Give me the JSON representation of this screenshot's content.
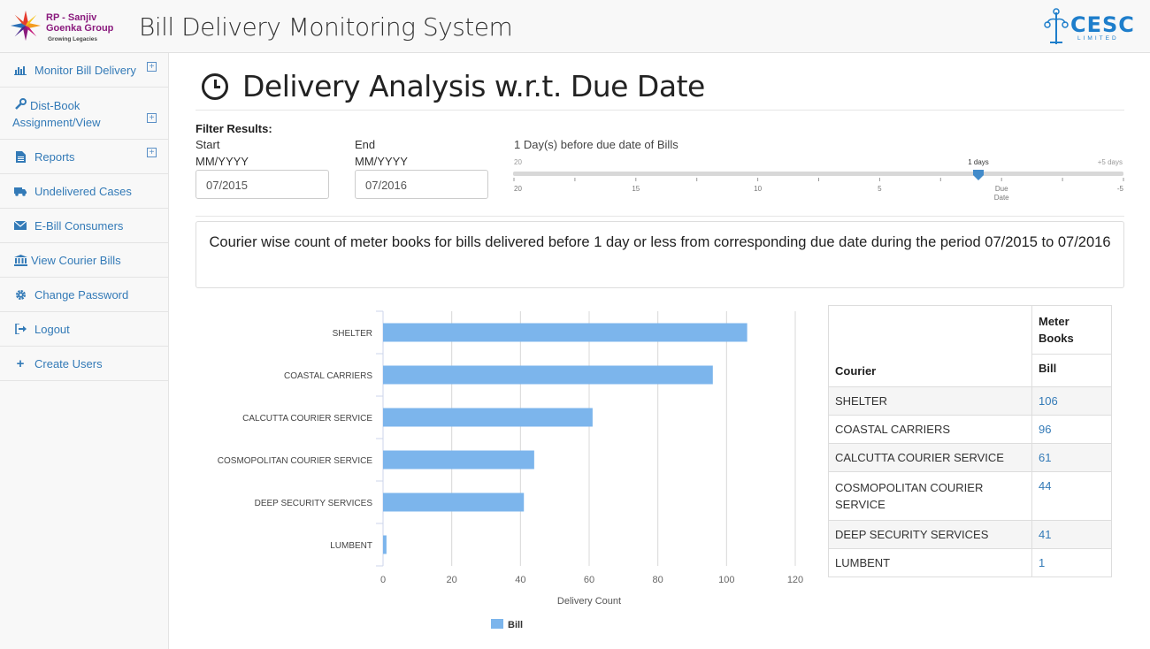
{
  "header": {
    "group_name": "RP - Sanjiv Goenka Group",
    "group_tagline": "Growing Legacies",
    "app_title": "Bill Delivery Monitoring System",
    "company_logo_text": "CESC",
    "company_logo_sub": "LIMITED"
  },
  "sidebar": {
    "items": [
      {
        "label": "Monitor Bill Delivery",
        "icon": "bar-chart-icon",
        "expandable": true
      },
      {
        "label": "Dist-Book Assignment/View",
        "icon": "wrench-icon",
        "expandable": true
      },
      {
        "label": "Reports",
        "icon": "file-icon",
        "expandable": true
      },
      {
        "label": "Undelivered Cases",
        "icon": "truck-icon",
        "expandable": false
      },
      {
        "label": "E-Bill Consumers",
        "icon": "envelope-icon",
        "expandable": false
      },
      {
        "label": "View Courier Bills",
        "icon": "bank-icon",
        "expandable": false
      },
      {
        "label": "Change Password",
        "icon": "gear-icon",
        "expandable": false
      },
      {
        "label": "Logout",
        "icon": "logout-icon",
        "expandable": false
      },
      {
        "label": "Create Users",
        "icon": "plus-icon",
        "expandable": false
      }
    ]
  },
  "page": {
    "title": "Delivery Analysis w.r.t. Due Date"
  },
  "filter": {
    "heading": "Filter Results:",
    "start_label": "Start",
    "start_format": "MM/YYYY",
    "start_value": "07/2015",
    "end_label": "End",
    "end_format": "MM/YYYY",
    "end_value": "07/2016",
    "slider_caption": "1 Day(s) before due date of Bills",
    "slider": {
      "min_label": "20",
      "max_label": "+5 days",
      "value_label": "1 days",
      "value": 1,
      "ticks": [
        "20",
        "15",
        "10",
        "5",
        "Due Date",
        "-5"
      ]
    }
  },
  "caption": "Courier wise count of meter books for bills delivered before 1 day or less from corresponding due date during the period 07/2015 to 07/2016",
  "chart_data": {
    "type": "bar",
    "orientation": "horizontal",
    "categories": [
      "SHELTER",
      "COASTAL CARRIERS",
      "CALCUTTA COURIER SERVICE",
      "COSMOPOLITAN COURIER SERVICE",
      "DEEP SECURITY SERVICES",
      "LUMBENT"
    ],
    "series": [
      {
        "name": "Bill",
        "values": [
          106,
          96,
          61,
          44,
          41,
          1
        ]
      }
    ],
    "xlabel": "Delivery Count",
    "ylabel": "",
    "xlim": [
      0,
      120
    ],
    "xticks": [
      0,
      20,
      40,
      60,
      80,
      100,
      120
    ],
    "grid": true,
    "legend": "bottom-center",
    "color": "#7cb5ec"
  },
  "table": {
    "col_courier": "Courier",
    "col_group": "Meter Books",
    "col_bill": "Bill",
    "rows": [
      {
        "courier": "SHELTER",
        "bill": "106"
      },
      {
        "courier": "COASTAL CARRIERS",
        "bill": "96"
      },
      {
        "courier": "CALCUTTA COURIER SERVICE",
        "bill": "61"
      },
      {
        "courier": "COSMOPOLITAN COURIER SERVICE",
        "bill": "44"
      },
      {
        "courier": "DEEP SECURITY SERVICES",
        "bill": "41"
      },
      {
        "courier": "LUMBENT",
        "bill": "1"
      }
    ]
  }
}
